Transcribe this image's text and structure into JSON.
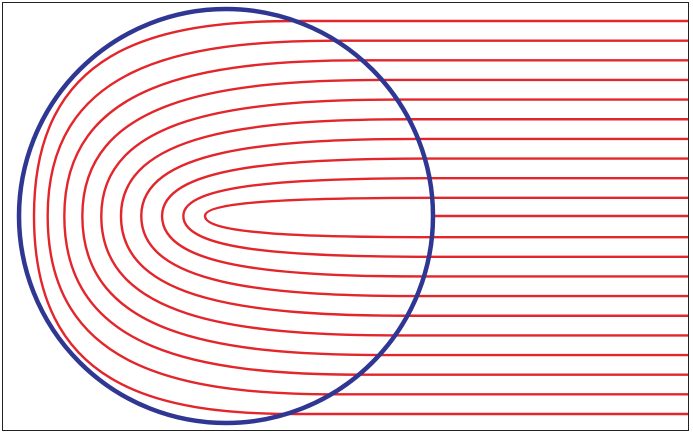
{
  "diagram": {
    "colors": {
      "field_lines": "#e2262b",
      "circle": "#2f3793",
      "frame": "#222222",
      "background": "#ffffff"
    },
    "field_line_count": 21,
    "circle_count": 1
  }
}
